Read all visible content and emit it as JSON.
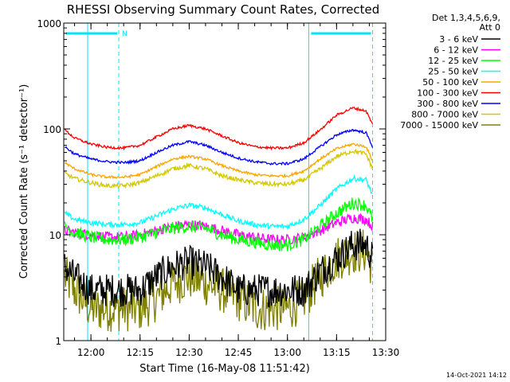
{
  "chart_data": {
    "type": "line",
    "title": "RHESSI Observing Summary Count Rates, Corrected",
    "xlabel": "Start Time (16-May-08 11:51:42)",
    "ylabel": "Corrected Count Rate (s⁻¹ detector⁻¹)",
    "y_scale": "log",
    "ylim": [
      1,
      1000
    ],
    "xlim": [
      "11:51:42",
      "13:30:00"
    ],
    "x_ticks": [
      "12:00",
      "12:15",
      "12:30",
      "12:45",
      "13:00",
      "13:15",
      "13:30"
    ],
    "y_ticks": [
      "1",
      "10",
      "100",
      "1000"
    ],
    "legend": {
      "position": "right",
      "header": [
        "Det 1,3,4,5,6,9,",
        "Att 0"
      ]
    },
    "footer_date": "14-Oct-2021 14:12",
    "night_marker_label": "N",
    "markers": {
      "vertical_lines": [
        "11:59:00",
        "12:08:30",
        "13:06:30",
        "13:26:00"
      ],
      "top_bars": [
        {
          "start": "11:51:42",
          "end": "12:08:30"
        },
        {
          "start": "13:06:30",
          "end": "13:26:00"
        }
      ]
    },
    "x": [
      "11:52",
      "11:55",
      "12:00",
      "12:05",
      "12:10",
      "12:15",
      "12:20",
      "12:25",
      "12:30",
      "12:35",
      "12:40",
      "12:45",
      "12:50",
      "12:55",
      "13:00",
      "13:05",
      "13:10",
      "13:15",
      "13:20",
      "13:24",
      "13:26"
    ],
    "series": [
      {
        "name": "3 - 6 keV",
        "color": "#000000",
        "noise": 0.16,
        "values": [
          5,
          4,
          3,
          3,
          3,
          3,
          4,
          5,
          5.5,
          5,
          4,
          3,
          3,
          3,
          3,
          3,
          4.5,
          6,
          8,
          8,
          6
        ]
      },
      {
        "name": "6 - 12 keV",
        "color": "#ff00ff",
        "noise": 0.05,
        "values": [
          11,
          10.5,
          10,
          9.5,
          9.5,
          10,
          11,
          12,
          12.5,
          12,
          11,
          10,
          9.5,
          9,
          9,
          9.5,
          11,
          13,
          14.5,
          14,
          12
        ]
      },
      {
        "name": "12 - 25 keV",
        "color": "#00ff00",
        "noise": 0.06,
        "values": [
          12,
          10.5,
          9.5,
          9,
          9,
          9.5,
          10.5,
          11.5,
          12,
          11.5,
          10,
          9,
          8.5,
          8,
          8,
          9,
          12,
          16,
          20,
          19,
          14
        ]
      },
      {
        "name": "25 - 50 keV",
        "color": "#00ffff",
        "noise": 0.025,
        "values": [
          16,
          14,
          13,
          12.5,
          12.5,
          13,
          15,
          17.5,
          19,
          18,
          15.5,
          13.5,
          12.5,
          12,
          12,
          14,
          19,
          27,
          34,
          33,
          24
        ]
      },
      {
        "name": "50 - 100 keV",
        "color": "#ffa500",
        "noise": 0.012,
        "values": [
          48,
          42,
          37,
          35,
          35,
          37,
          44,
          52,
          55,
          52,
          45,
          40,
          37,
          36,
          36,
          40,
          52,
          65,
          72,
          68,
          50
        ]
      },
      {
        "name": "100 - 300 keV",
        "color": "#ff0000",
        "noise": 0.012,
        "values": [
          98,
          82,
          72,
          67,
          66,
          70,
          84,
          100,
          108,
          100,
          86,
          74,
          68,
          66,
          66,
          74,
          98,
          135,
          158,
          148,
          110
        ]
      },
      {
        "name": "300 - 800 keV",
        "color": "#0000ff",
        "noise": 0.012,
        "values": [
          68,
          58,
          52,
          49,
          48,
          50,
          60,
          70,
          76,
          70,
          60,
          53,
          49,
          47,
          47,
          52,
          68,
          88,
          98,
          92,
          68
        ]
      },
      {
        "name": "800 - 7000 keV",
        "color": "#d4c800",
        "noise": 0.02,
        "values": [
          38,
          34,
          31,
          29,
          29,
          31,
          36,
          42,
          45,
          42,
          36,
          33,
          31,
          30,
          30,
          33,
          42,
          55,
          62,
          58,
          42
        ]
      },
      {
        "name": "7000 - 15000 keV",
        "color": "#808000",
        "noise": 0.22,
        "values": [
          4,
          3,
          2,
          2,
          2,
          2,
          2.5,
          3.5,
          4,
          3.5,
          3,
          2.5,
          2,
          2,
          2,
          2.5,
          4,
          6,
          7,
          7,
          5
        ]
      }
    ]
  }
}
